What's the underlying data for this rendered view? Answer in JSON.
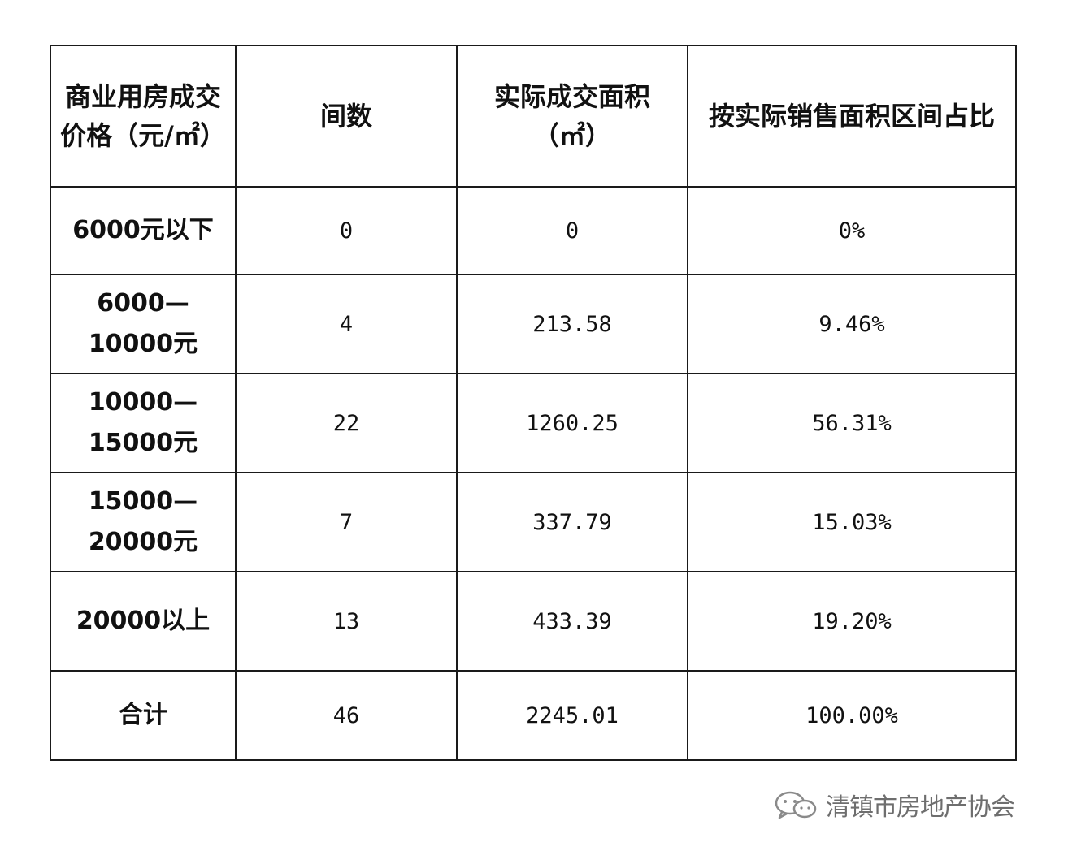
{
  "table": {
    "headers": [
      "商业用房成交价格（元/㎡）",
      "间数",
      "实际成交面积（㎡）",
      "按实际销售面积区间占比"
    ],
    "rows": [
      {
        "range": "6000元以下",
        "count": "0",
        "area": "0",
        "share": "0%"
      },
      {
        "range": "6000—10000元",
        "count": "4",
        "area": "213.58",
        "share": "9.46%"
      },
      {
        "range": "10000—15000元",
        "count": "22",
        "area": "1260.25",
        "share": "56.31%"
      },
      {
        "range": "15000—20000元",
        "count": "7",
        "area": "337.79",
        "share": "15.03%"
      },
      {
        "range": "20000以上",
        "count": "13",
        "area": "433.39",
        "share": "19.20%"
      },
      {
        "range": "合计",
        "count": "46",
        "area": "2245.01",
        "share": "100.00%"
      }
    ]
  },
  "watermark": {
    "text": "清镇市房地产协会",
    "icon": "wechat-icon"
  }
}
